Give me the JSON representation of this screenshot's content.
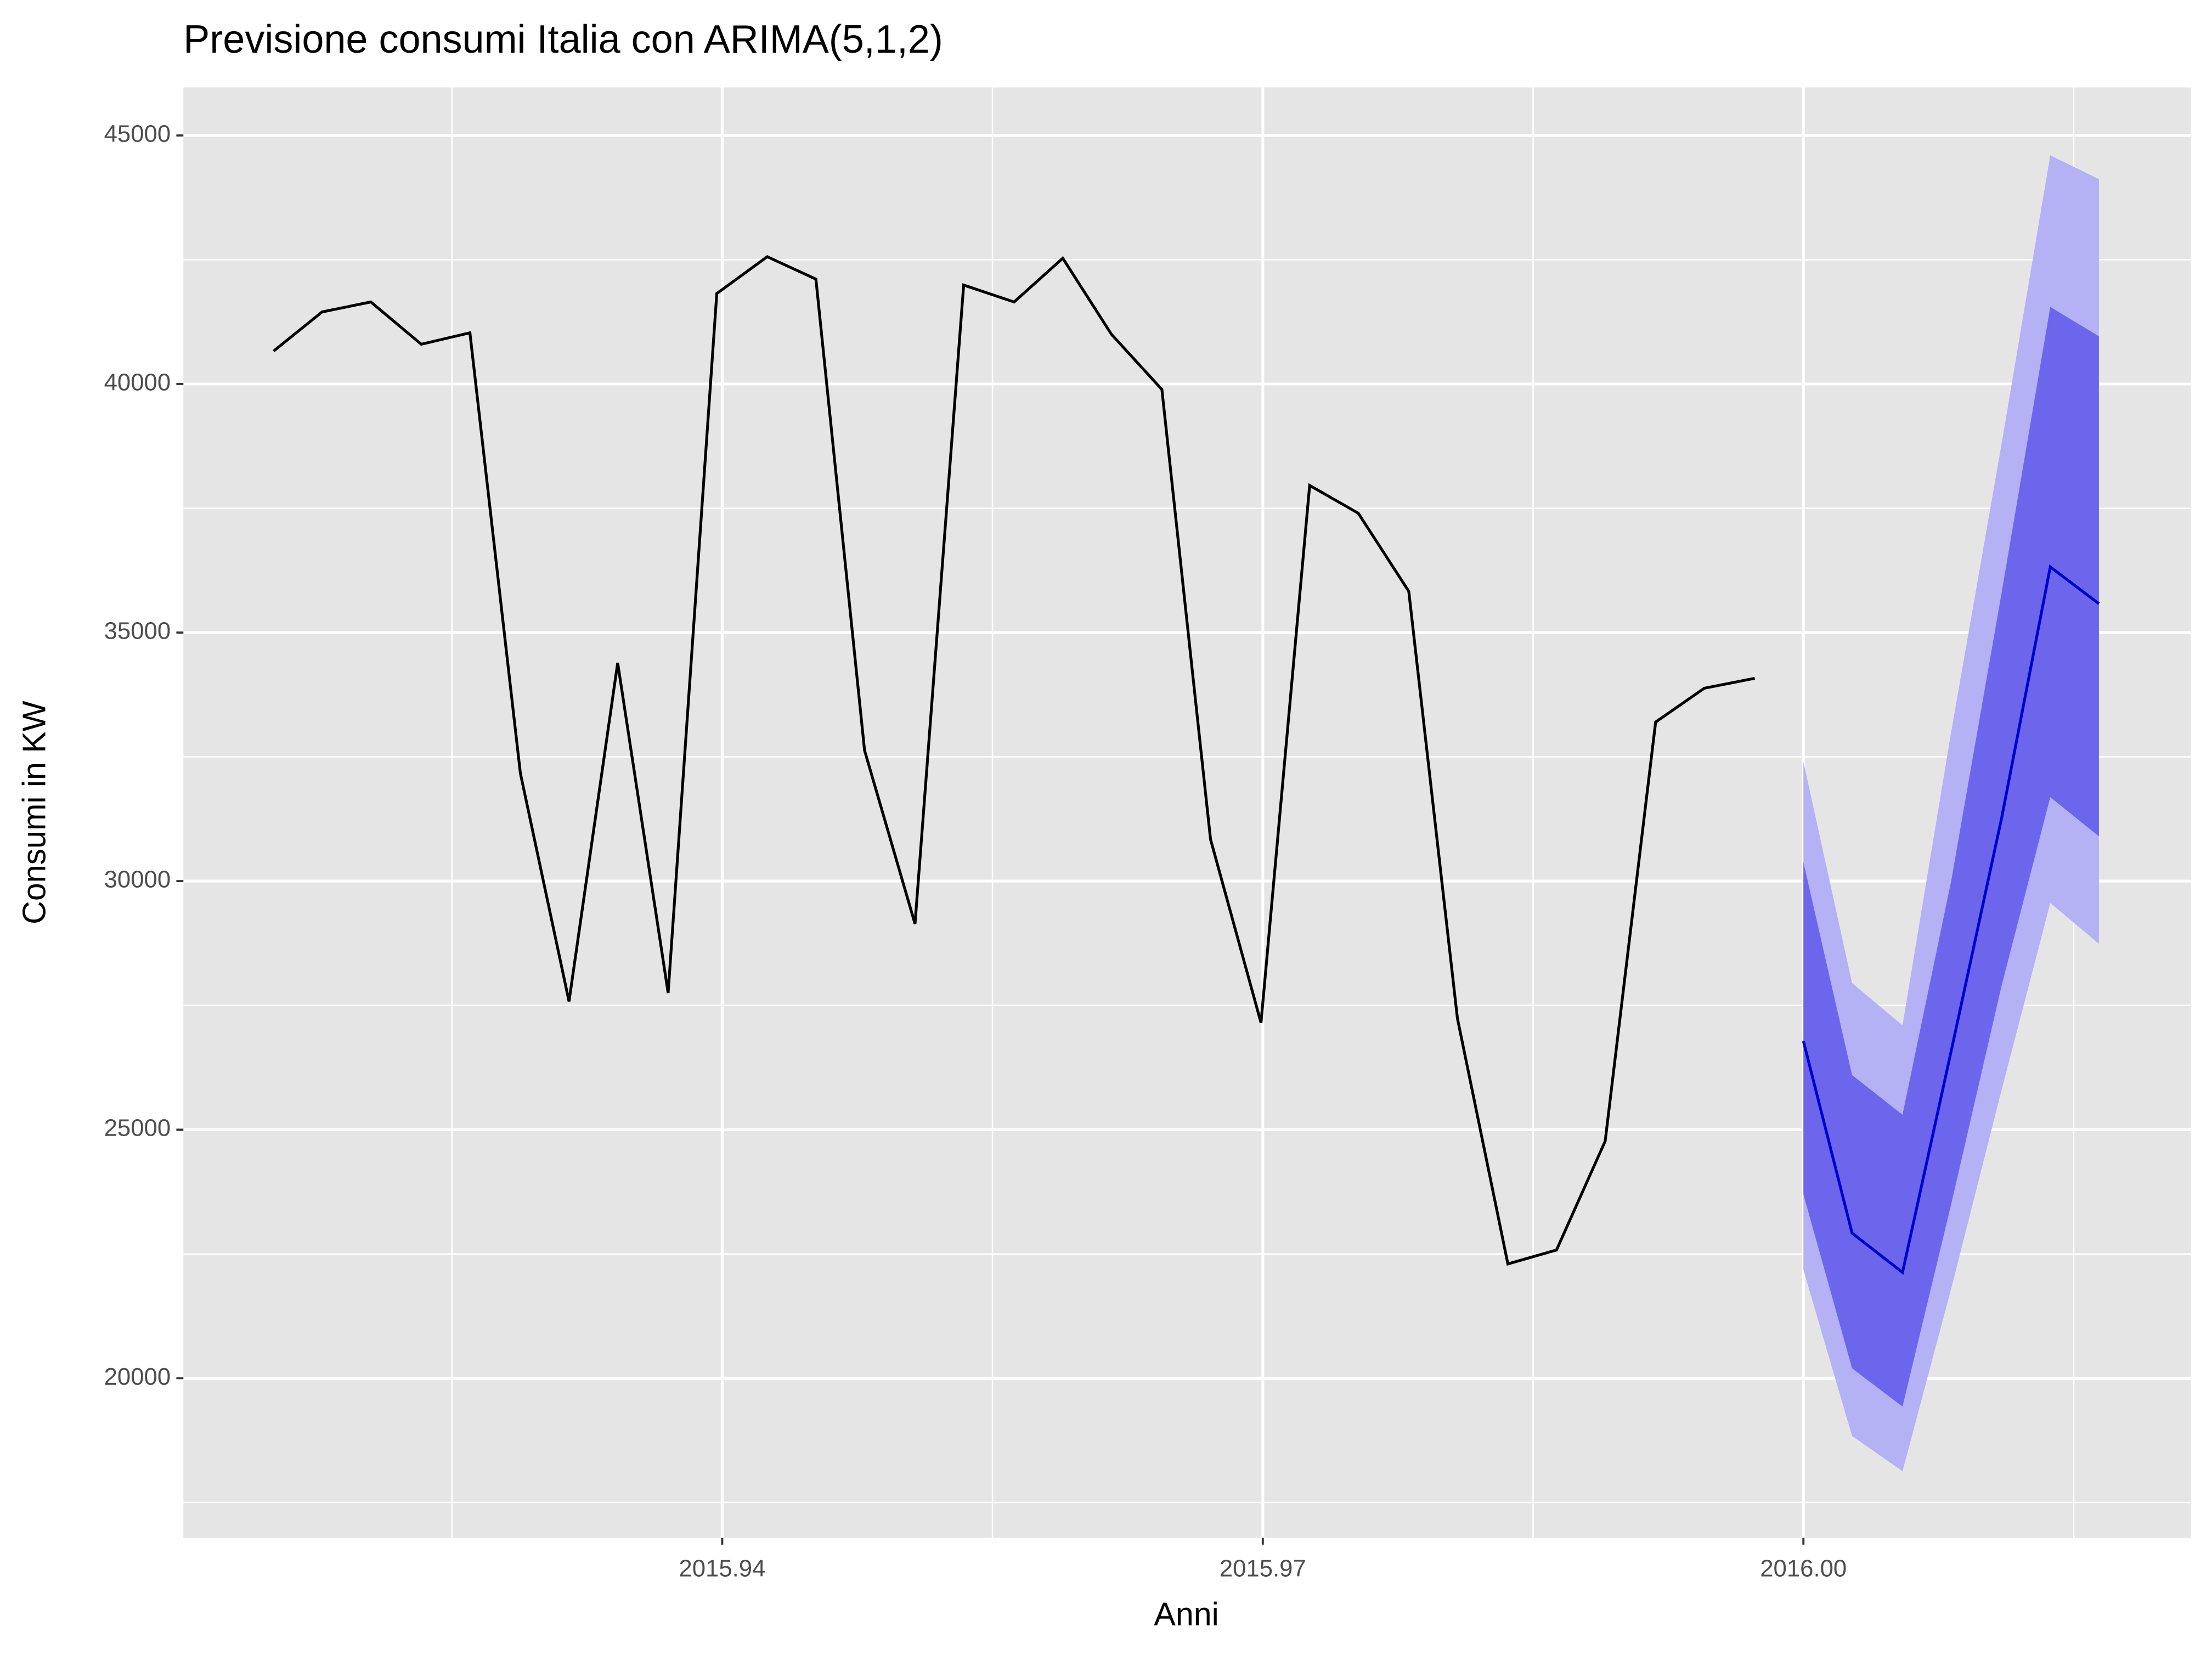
{
  "chart_data": {
    "type": "line",
    "title": "Previsione consumi Italia con ARIMA(5,1,2)",
    "x_label": "Anni",
    "y_label": "Consumi in KW",
    "history": {
      "color": "#000000",
      "x": [
        2015.9151,
        2015.9178,
        2015.9205,
        2015.9233,
        2015.926,
        2015.9288,
        2015.9315,
        2015.9342,
        2015.937,
        2015.9397,
        2015.9425,
        2015.9452,
        2015.9479,
        2015.9507,
        2015.9534,
        2015.9562,
        2015.9589,
        2015.9616,
        2015.9644,
        2015.9671,
        2015.9699,
        2015.9726,
        2015.9753,
        2015.9781,
        2015.9808,
        2015.9836,
        2015.9863,
        2015.989,
        2015.9918,
        2015.9945,
        2015.9973
      ],
      "values": [
        40660,
        41450,
        41650,
        40800,
        41030,
        32170,
        27580,
        34390,
        27750,
        41820,
        42560,
        42110,
        32630,
        29140,
        41990,
        41650,
        42530,
        41000,
        39890,
        30840,
        27150,
        37960,
        37400,
        35830,
        27240,
        22300,
        22580,
        24770,
        33200,
        33880,
        34080
      ]
    },
    "forecast": {
      "color": "#0000cc",
      "color_80": "#6b66ec",
      "color_95": "#b4b2f5",
      "x": [
        2016.0,
        2016.0027,
        2016.0055,
        2016.0082,
        2016.011,
        2016.0137,
        2016.0164
      ],
      "values": [
        26780,
        22920,
        22130,
        26580,
        31270,
        36320,
        35580
      ],
      "lo80": [
        23700,
        20200,
        19430,
        23500,
        27900,
        31690,
        30900
      ],
      "hi80": [
        30380,
        26100,
        25300,
        30000,
        35800,
        41550,
        40960
      ],
      "lo95": [
        22180,
        18840,
        18130,
        21800,
        25800,
        29560,
        28740
      ],
      "hi95": [
        32400,
        27950,
        27100,
        33000,
        38800,
        44600,
        44120
      ]
    },
    "xlim": [
      2015.9101,
      2016.0215
    ],
    "xticks": [
      2015.94,
      2015.97,
      {
        "value": 2016,
        "label": "2016.00"
      }
    ],
    "ylim": [
      16793,
      45965
    ],
    "yticks": [
      20000,
      25000,
      30000,
      35000,
      40000,
      45000
    ],
    "grid": true
  }
}
